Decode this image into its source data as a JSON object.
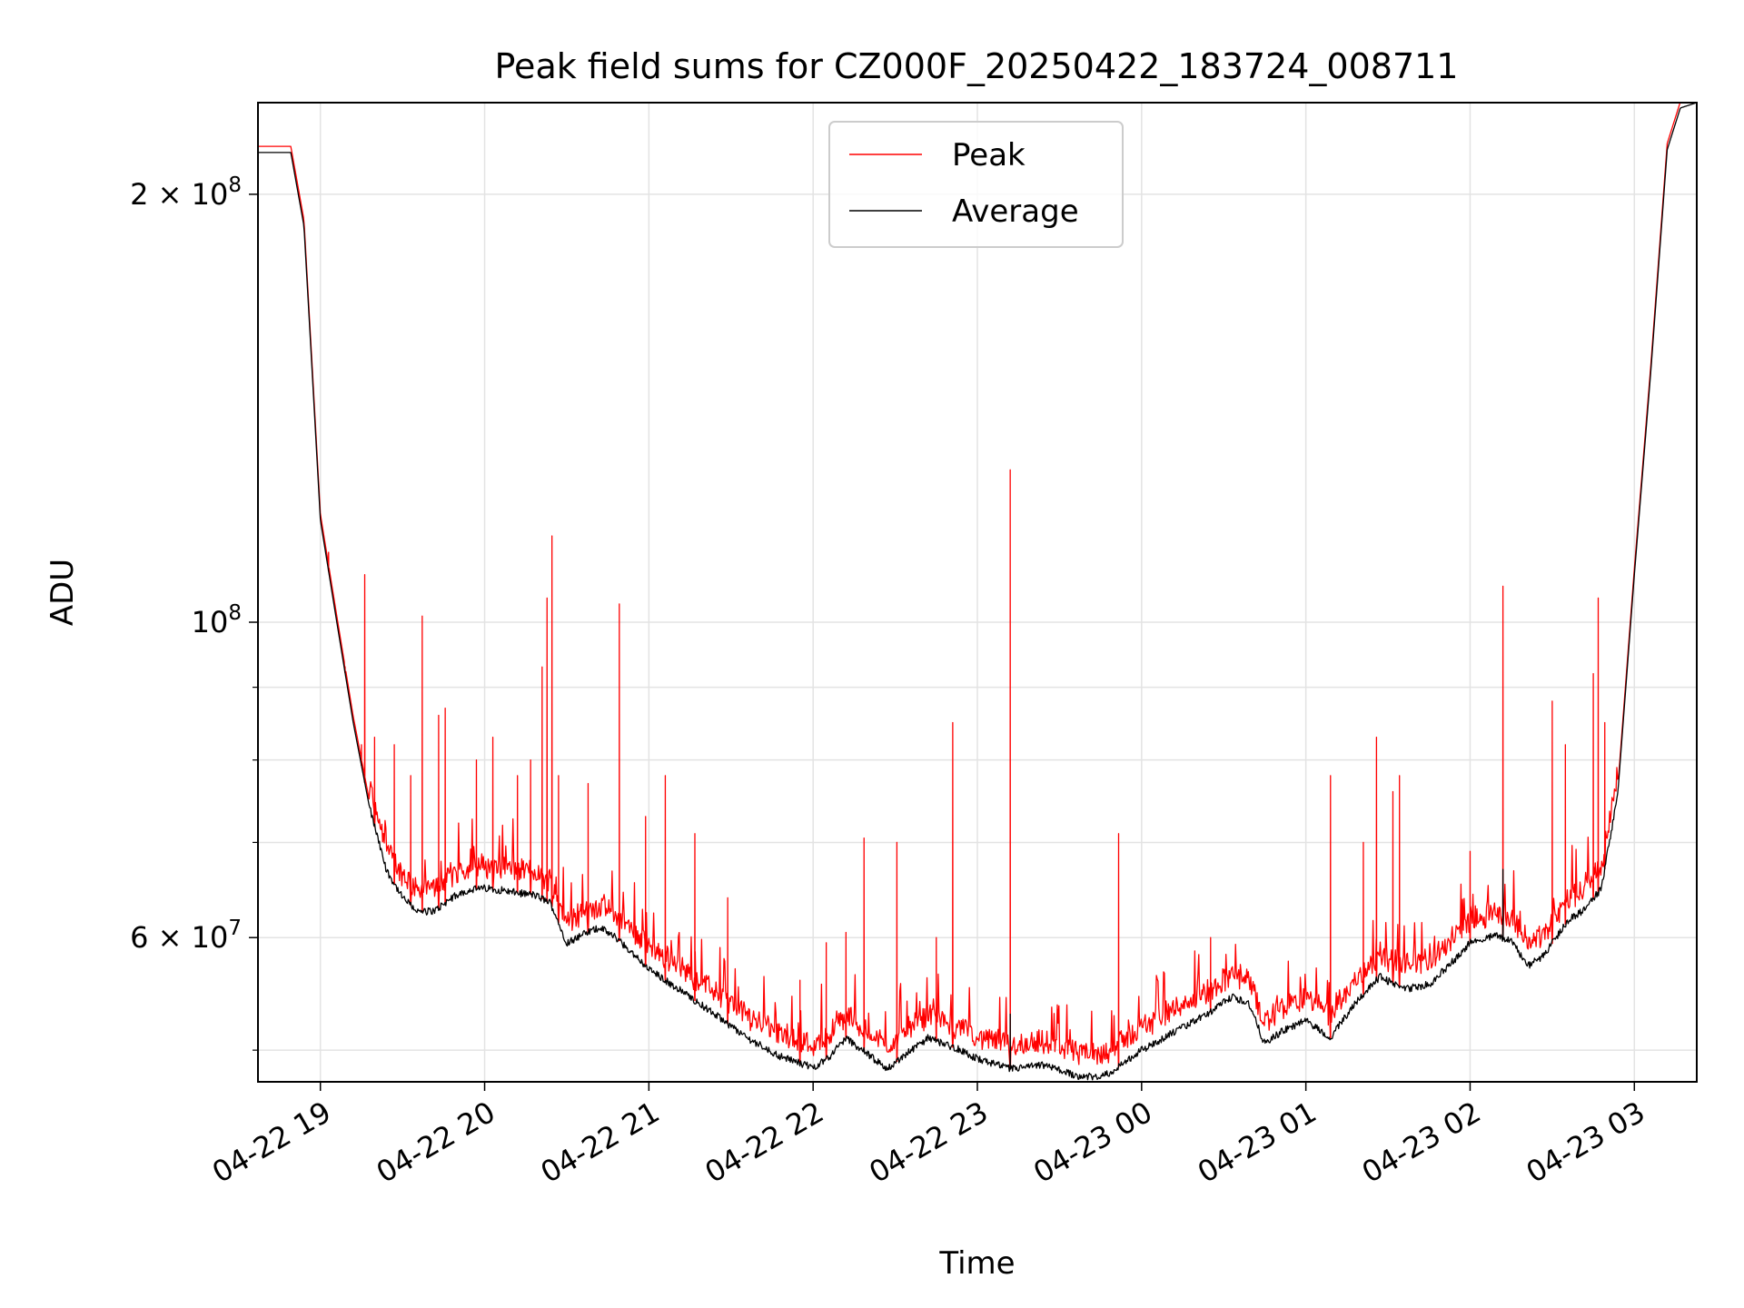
{
  "chart_data": {
    "type": "line",
    "title": "Peak field sums for CZ000F_20250422_183724_008711",
    "xlabel": "Time",
    "ylabel": "ADU",
    "x_unit": "hours since 2025-04-22 00:00",
    "xlim": [
      18.62,
      27.38
    ],
    "ylim": [
      47500000,
      232000000
    ],
    "yscale": "log",
    "grid": true,
    "legend": "upper center",
    "x_ticks": [
      {
        "value": 19,
        "label": "04-22 19"
      },
      {
        "value": 20,
        "label": "04-22 20"
      },
      {
        "value": 21,
        "label": "04-22 21"
      },
      {
        "value": 22,
        "label": "04-22 22"
      },
      {
        "value": 23,
        "label": "04-22 23"
      },
      {
        "value": 24,
        "label": "04-23 00"
      },
      {
        "value": 25,
        "label": "04-23 01"
      },
      {
        "value": 26,
        "label": "04-23 02"
      },
      {
        "value": 27,
        "label": "04-23 03"
      }
    ],
    "y_ticks": [
      {
        "value": 60000000,
        "base": "6",
        "exp": "7"
      },
      {
        "value": 100000000,
        "base": "",
        "exp": "8"
      },
      {
        "value": 200000000,
        "base": "2",
        "exp": "8"
      }
    ],
    "y_minor_ticks": [
      50000000,
      70000000,
      80000000,
      90000000
    ],
    "average_baseline": [
      [
        18.62,
        214000000
      ],
      [
        18.82,
        214000000
      ],
      [
        18.9,
        190000000
      ],
      [
        18.95,
        150000000
      ],
      [
        19.0,
        118000000
      ],
      [
        19.1,
        100000000
      ],
      [
        19.2,
        85000000
      ],
      [
        19.3,
        74000000
      ],
      [
        19.4,
        67000000
      ],
      [
        19.5,
        64000000
      ],
      [
        19.6,
        62500000
      ],
      [
        19.7,
        62700000
      ],
      [
        19.8,
        64000000
      ],
      [
        19.9,
        64800000
      ],
      [
        20.0,
        65000000
      ],
      [
        20.1,
        64800000
      ],
      [
        20.2,
        64500000
      ],
      [
        20.3,
        64300000
      ],
      [
        20.4,
        63500000
      ],
      [
        20.5,
        59500000
      ],
      [
        20.6,
        60300000
      ],
      [
        20.7,
        61000000
      ],
      [
        20.8,
        60000000
      ],
      [
        20.9,
        58500000
      ],
      [
        21.0,
        57000000
      ],
      [
        21.2,
        55000000
      ],
      [
        21.4,
        53000000
      ],
      [
        21.6,
        51000000
      ],
      [
        21.8,
        49500000
      ],
      [
        22.0,
        48600000
      ],
      [
        22.1,
        49500000
      ],
      [
        22.2,
        51000000
      ],
      [
        22.3,
        50000000
      ],
      [
        22.45,
        48500000
      ],
      [
        22.55,
        49500000
      ],
      [
        22.7,
        51000000
      ],
      [
        22.9,
        50000000
      ],
      [
        23.0,
        49300000
      ],
      [
        23.2,
        48500000
      ],
      [
        23.4,
        48800000
      ],
      [
        23.6,
        48000000
      ],
      [
        23.75,
        47800000
      ],
      [
        23.85,
        48600000
      ],
      [
        24.0,
        50000000
      ],
      [
        24.2,
        51500000
      ],
      [
        24.4,
        53000000
      ],
      [
        24.55,
        54500000
      ],
      [
        24.65,
        54000000
      ],
      [
        24.75,
        50500000
      ],
      [
        24.85,
        51500000
      ],
      [
        25.0,
        52500000
      ],
      [
        25.15,
        51000000
      ],
      [
        25.3,
        54000000
      ],
      [
        25.45,
        56300000
      ],
      [
        25.6,
        55200000
      ],
      [
        25.75,
        55600000
      ],
      [
        25.9,
        57800000
      ],
      [
        26.0,
        59500000
      ],
      [
        26.15,
        60200000
      ],
      [
        26.25,
        59700000
      ],
      [
        26.35,
        57300000
      ],
      [
        26.45,
        58300000
      ],
      [
        26.6,
        61800000
      ],
      [
        26.7,
        62800000
      ],
      [
        26.8,
        65000000
      ],
      [
        26.9,
        76000000
      ],
      [
        27.0,
        108000000
      ],
      [
        27.1,
        150000000
      ],
      [
        27.2,
        215000000
      ],
      [
        27.28,
        230000000
      ],
      [
        27.38,
        232000000
      ]
    ],
    "series": [
      {
        "name": "Peak",
        "color": "#ff0000",
        "spikes": [
          [
            19.05,
            112000000
          ],
          [
            19.15,
            93000000
          ],
          [
            19.25,
            82000000
          ],
          [
            19.27,
            108000000
          ],
          [
            19.33,
            83000000
          ],
          [
            19.45,
            82000000
          ],
          [
            19.55,
            78000000
          ],
          [
            19.62,
            101000000
          ],
          [
            19.72,
            86000000
          ],
          [
            19.76,
            87000000
          ],
          [
            19.95,
            80000000
          ],
          [
            20.05,
            83000000
          ],
          [
            20.2,
            78000000
          ],
          [
            20.28,
            80000000
          ],
          [
            20.35,
            93000000
          ],
          [
            20.38,
            104000000
          ],
          [
            20.41,
            115000000
          ],
          [
            20.45,
            78000000
          ],
          [
            20.63,
            77000000
          ],
          [
            20.82,
            103000000
          ],
          [
            20.98,
            73000000
          ],
          [
            21.1,
            78000000
          ],
          [
            21.28,
            71000000
          ],
          [
            21.48,
            64000000
          ],
          [
            21.92,
            56000000
          ],
          [
            22.08,
            59500000
          ],
          [
            22.2,
            60500000
          ],
          [
            22.31,
            70500000
          ],
          [
            22.51,
            70000000
          ],
          [
            22.75,
            60000000
          ],
          [
            22.85,
            85000000
          ],
          [
            23.2,
            128000000
          ],
          [
            23.86,
            71000000
          ],
          [
            24.42,
            60000000
          ],
          [
            25.15,
            78000000
          ],
          [
            25.35,
            70000000
          ],
          [
            25.43,
            83000000
          ],
          [
            25.53,
            76000000
          ],
          [
            25.57,
            78000000
          ],
          [
            26.0,
            69000000
          ],
          [
            26.2,
            106000000
          ],
          [
            26.5,
            88000000
          ],
          [
            26.58,
            82000000
          ],
          [
            26.75,
            92000000
          ],
          [
            26.78,
            104000000
          ],
          [
            26.82,
            85000000
          ]
        ]
      },
      {
        "name": "Average",
        "color": "#000000",
        "spikes": [
          [
            23.2,
            53000000
          ],
          [
            26.2,
            67000000
          ]
        ]
      }
    ]
  }
}
